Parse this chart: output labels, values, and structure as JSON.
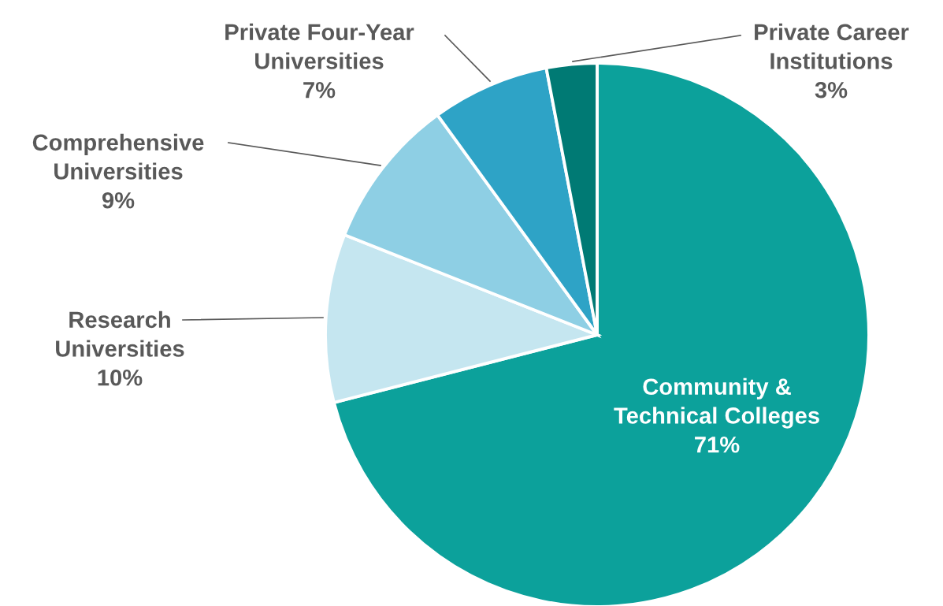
{
  "chart_data": {
    "type": "pie",
    "categories": [
      "Community &\nTechnical Colleges",
      "Research\nUniversities",
      "Comprehensive\nUniversities",
      "Private Four-Year\nUniversities",
      "Private Career\nInstitutions"
    ],
    "values": [
      71,
      10,
      9,
      7,
      3
    ],
    "colors": [
      "#0ca19b",
      "#c5e6f0",
      "#8ecfe4",
      "#2ea3c6",
      "#007a74"
    ],
    "value_labels": [
      "71%",
      "10%",
      "9%",
      "7%",
      "3%"
    ]
  }
}
